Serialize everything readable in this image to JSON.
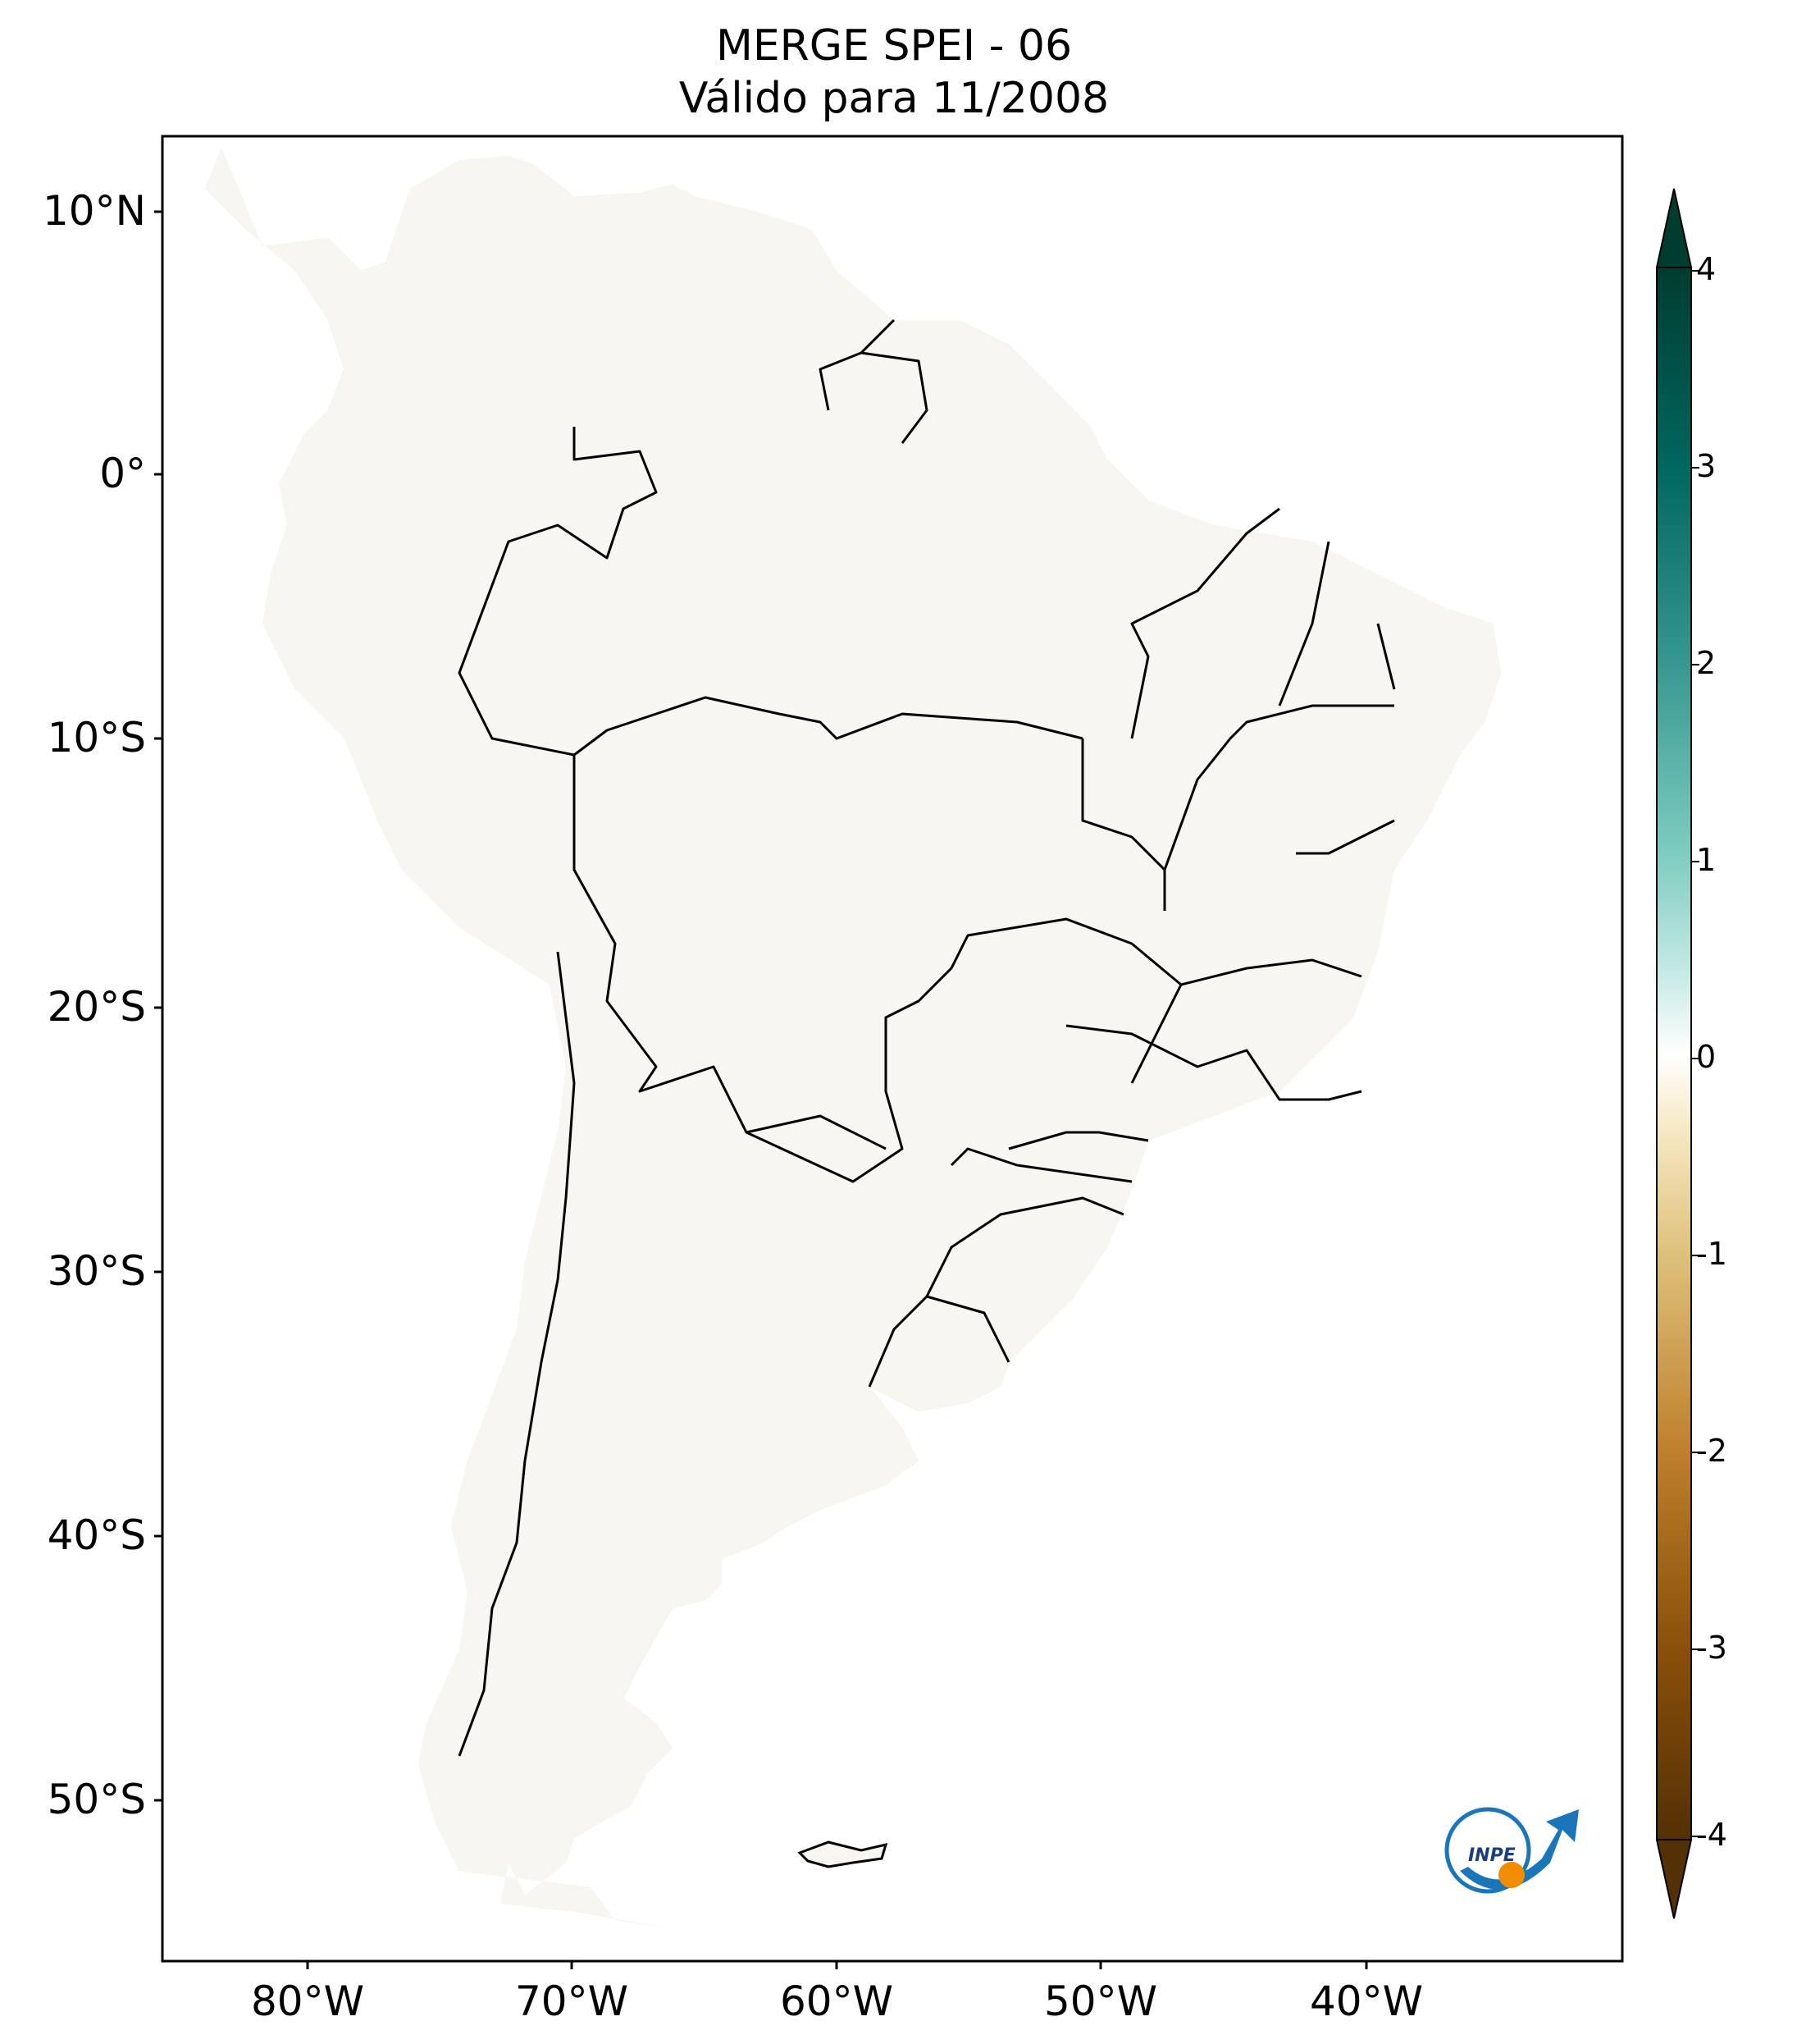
{
  "title": {
    "line1": "MERGE   SPEI - 06",
    "line2": "Válido para 11/2008"
  },
  "map": {
    "region": "South America",
    "lat_labels": [
      "10°N",
      "0°",
      "10°S",
      "20°S",
      "30°S",
      "40°S",
      "50°S"
    ],
    "lon_labels": [
      "80°W",
      "70°W",
      "60°W",
      "50°W",
      "40°W"
    ],
    "lon_range": [
      -85,
      -30
    ],
    "lat_range": [
      -57,
      13
    ],
    "boundaries": "country and Brazilian state borders",
    "logo": "INPE"
  },
  "colorbar": {
    "colormap": "BrBG",
    "ticks": [
      "4",
      "3",
      "2",
      "1",
      "0",
      "-1",
      "-2",
      "-3",
      "-4"
    ],
    "range": [
      -4,
      4
    ],
    "extend": "both",
    "colors": {
      "pos4": "#003c30",
      "pos3": "#01665e",
      "pos2": "#35978f",
      "pos1": "#c7eae5",
      "zero": "#f5f5f5",
      "neg1": "#f6e8c3",
      "neg2": "#dfc27d",
      "neg3": "#bf812d",
      "neg4": "#543005"
    }
  }
}
